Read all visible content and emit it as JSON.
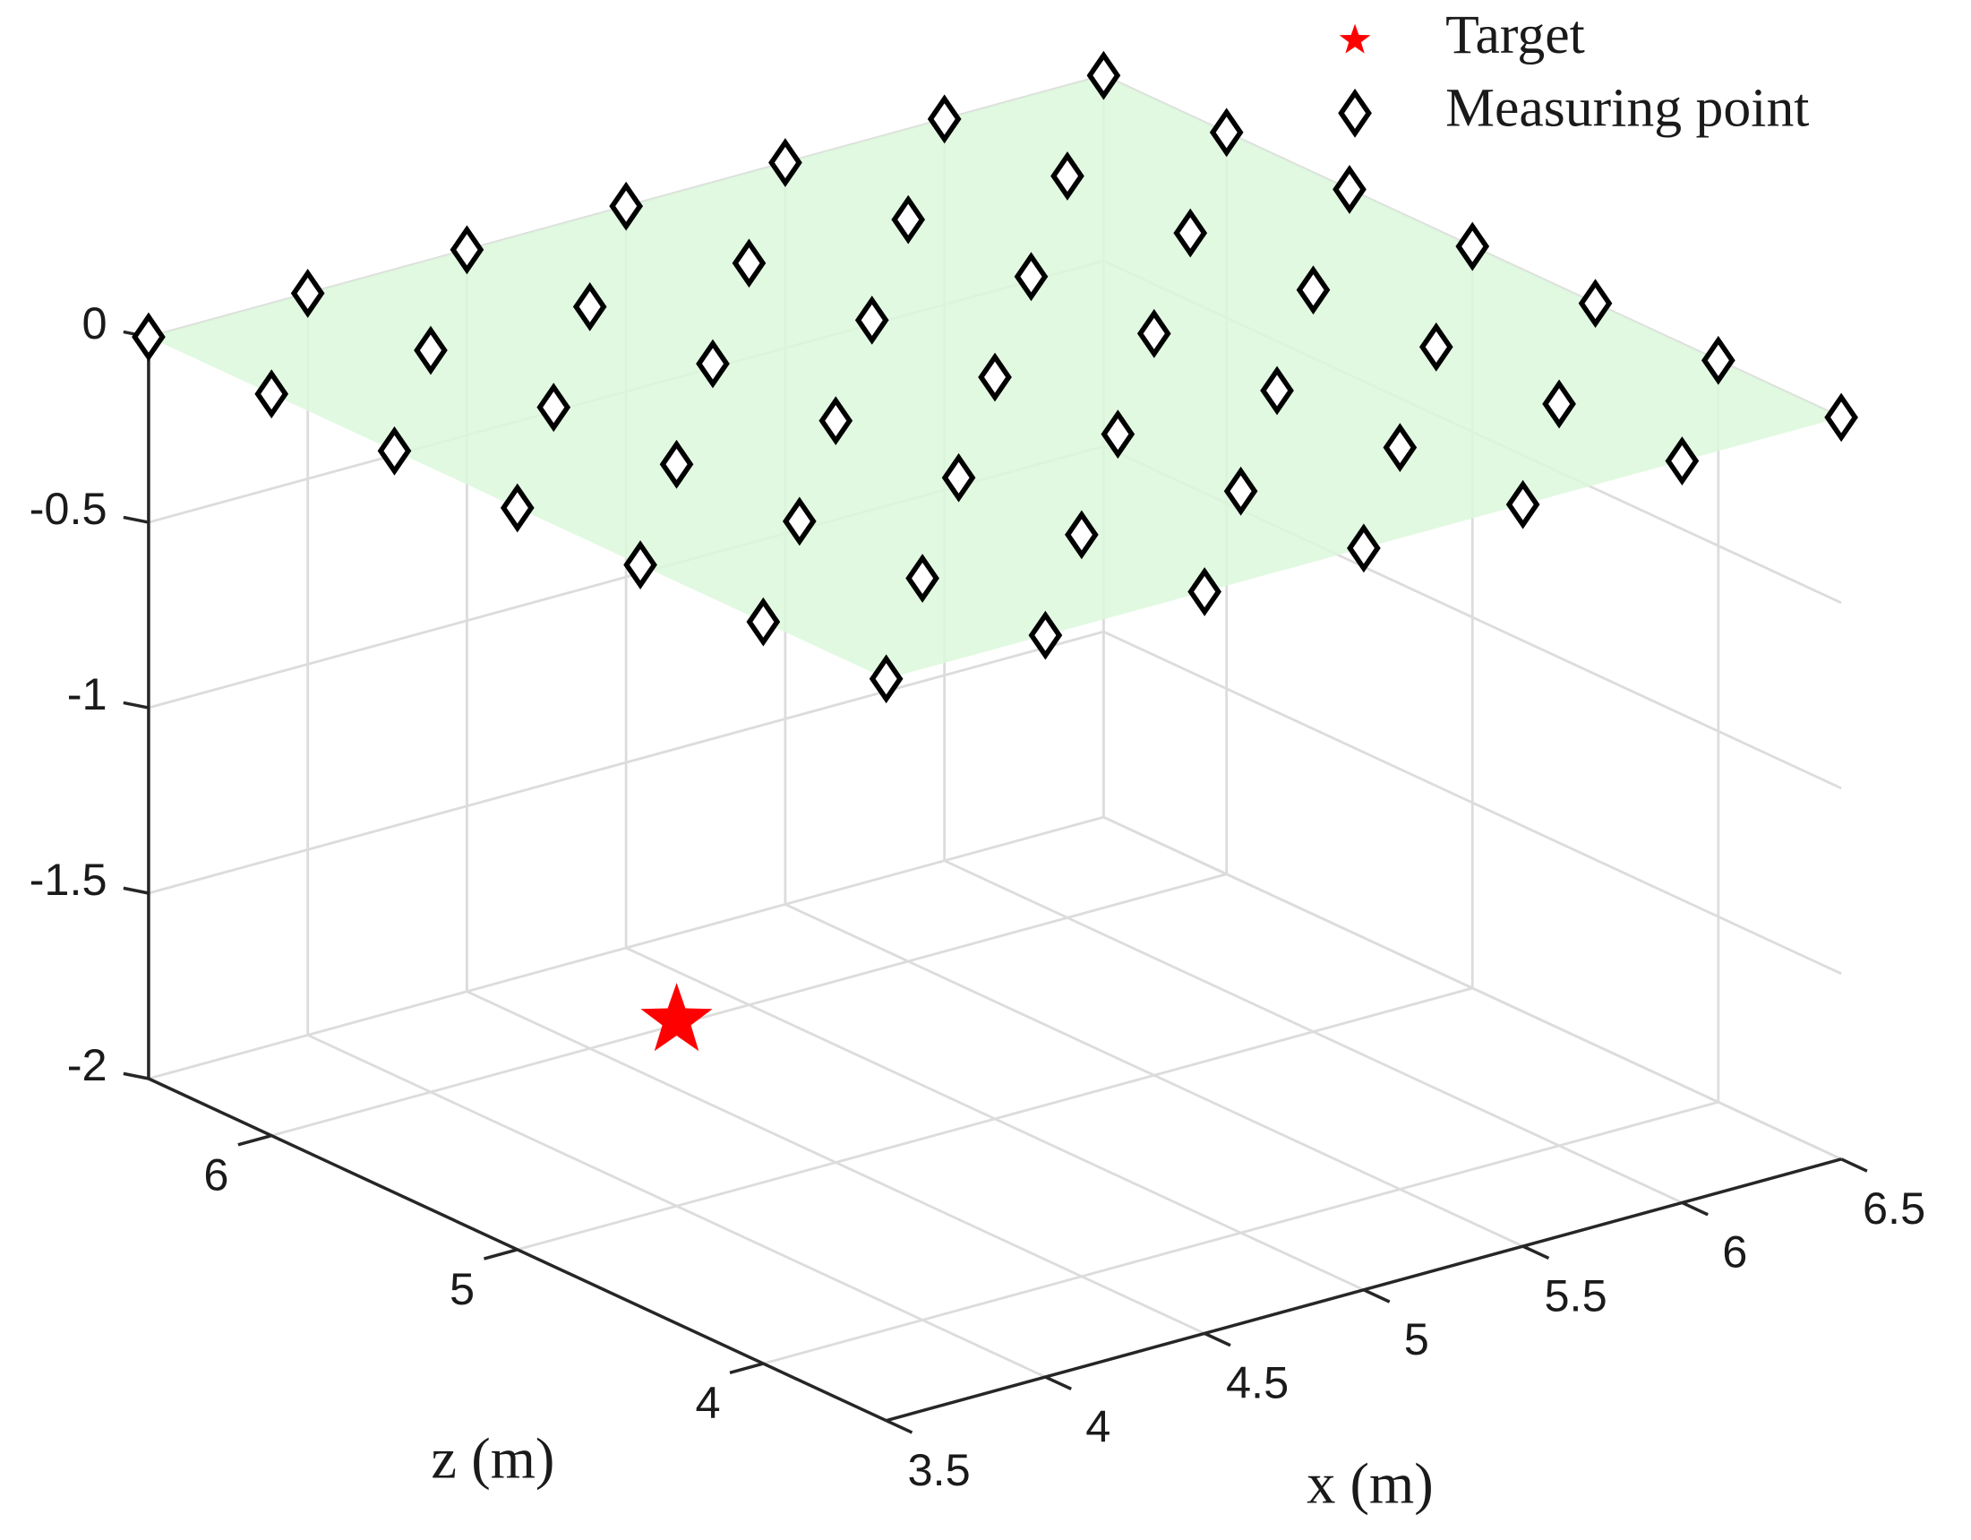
{
  "chart_data": {
    "type": "scatter3d",
    "xlabel": "x (m)",
    "zlabel": "z (m)",
    "xlim": [
      3.5,
      6.5
    ],
    "zlim": [
      3.5,
      6.5
    ],
    "ylim": [
      -2,
      0
    ],
    "xticks": [
      3.5,
      4,
      4.5,
      5,
      5.5,
      6,
      6.5
    ],
    "zticks": [
      4,
      5,
      6
    ],
    "yticks": [
      -2,
      -1.5,
      -1,
      -0.5,
      0
    ],
    "grid": true,
    "surface_color": "#dcf8dc",
    "legend": "top-right",
    "series": [
      {
        "name": "Target",
        "color": "#ff0000",
        "marker": "star",
        "x": [
          4
        ],
        "z": [
          5
        ],
        "y": [
          -1.5
        ]
      },
      {
        "name": "Measuring point",
        "color": "#000000",
        "marker": "diamond",
        "x": [
          3.5,
          4,
          4.5,
          5,
          5.5,
          6,
          6.5,
          3.5,
          4,
          4.5,
          5,
          5.5,
          6,
          6.5,
          3.5,
          4,
          4.5,
          5,
          5.5,
          6,
          6.5,
          3.5,
          4,
          4.5,
          5,
          5.5,
          6,
          6.5,
          3.5,
          4,
          4.5,
          5,
          5.5,
          6,
          6.5,
          3.5,
          4,
          4.5,
          5,
          5.5,
          6,
          6.5,
          3.5,
          4,
          4.5,
          5,
          5.5,
          6,
          6.5
        ],
        "z": [
          3.5,
          3.5,
          3.5,
          3.5,
          3.5,
          3.5,
          3.5,
          4,
          4,
          4,
          4,
          4,
          4,
          4,
          4.5,
          4.5,
          4.5,
          4.5,
          4.5,
          4.5,
          4.5,
          5,
          5,
          5,
          5,
          5,
          5,
          5,
          5.5,
          5.5,
          5.5,
          5.5,
          5.5,
          5.5,
          5.5,
          6,
          6,
          6,
          6,
          6,
          6,
          6,
          6.5,
          6.5,
          6.5,
          6.5,
          6.5,
          6.5,
          6.5
        ],
        "y": [
          0,
          0,
          0,
          0,
          0,
          0,
          0,
          0,
          0,
          0,
          0,
          0,
          0,
          0,
          0,
          0,
          0,
          0,
          0,
          0,
          0,
          0,
          0,
          0,
          0,
          0,
          0,
          0,
          0,
          0,
          0,
          0,
          0,
          0,
          0,
          0,
          0,
          0,
          0,
          0,
          0,
          0,
          0,
          0,
          0,
          0,
          0,
          0,
          0
        ]
      }
    ]
  }
}
